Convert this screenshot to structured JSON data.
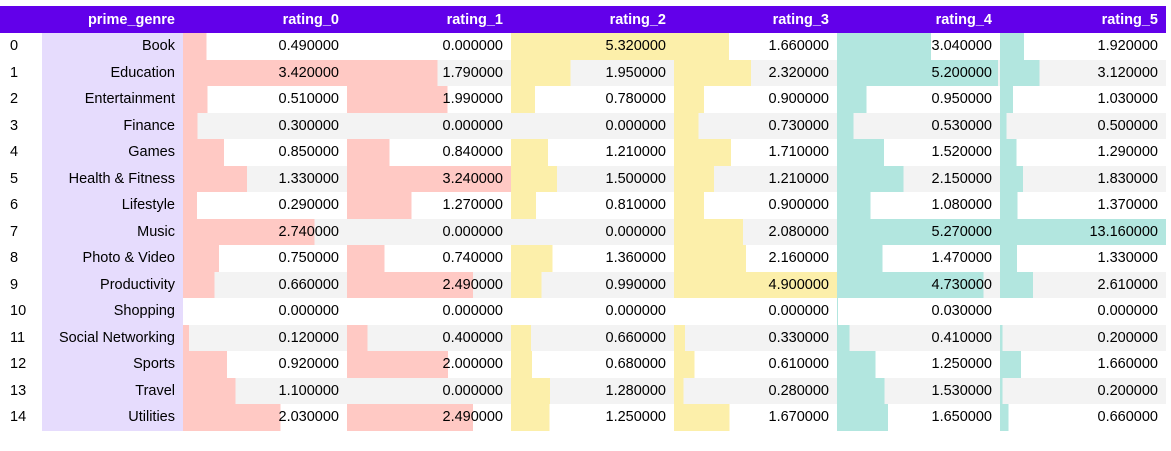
{
  "table": {
    "headers": [
      "",
      "prime_genre",
      "rating_0",
      "rating_1",
      "rating_2",
      "rating_3",
      "rating_4",
      "rating_5"
    ],
    "bar_colors": [
      "#ffc9c4",
      "#ffc9c4",
      "#fcefaa",
      "#fcefaa",
      "#b2e6df",
      "#b2e6df"
    ],
    "column_max": [
      3.42,
      3.24,
      5.32,
      4.9,
      5.27,
      13.16
    ],
    "column_maxes_note_absent": null,
    "rows": [
      {
        "idx": "0",
        "genre": "Book",
        "vals": [
          "0.490000",
          "0.000000",
          "5.320000",
          "1.660000",
          "3.040000",
          "1.920000"
        ]
      },
      {
        "idx": "1",
        "genre": "Education",
        "vals": [
          "3.420000",
          "1.790000",
          "1.950000",
          "2.320000",
          "5.200000",
          "3.120000"
        ]
      },
      {
        "idx": "2",
        "genre": "Entertainment",
        "vals": [
          "0.510000",
          "1.990000",
          "0.780000",
          "0.900000",
          "0.950000",
          "1.030000"
        ]
      },
      {
        "idx": "3",
        "genre": "Finance",
        "vals": [
          "0.300000",
          "0.000000",
          "0.000000",
          "0.730000",
          "0.530000",
          "0.500000"
        ]
      },
      {
        "idx": "4",
        "genre": "Games",
        "vals": [
          "0.850000",
          "0.840000",
          "1.210000",
          "1.710000",
          "1.520000",
          "1.290000"
        ]
      },
      {
        "idx": "5",
        "genre": "Health & Fitness",
        "vals": [
          "1.330000",
          "3.240000",
          "1.500000",
          "1.210000",
          "2.150000",
          "1.830000"
        ]
      },
      {
        "idx": "6",
        "genre": "Lifestyle",
        "vals": [
          "0.290000",
          "1.270000",
          "0.810000",
          "0.900000",
          "1.080000",
          "1.370000"
        ]
      },
      {
        "idx": "7",
        "genre": "Music",
        "vals": [
          "2.740000",
          "0.000000",
          "0.000000",
          "2.080000",
          "5.270000",
          "13.160000"
        ]
      },
      {
        "idx": "8",
        "genre": "Photo & Video",
        "vals": [
          "0.750000",
          "0.740000",
          "1.360000",
          "2.160000",
          "1.470000",
          "1.330000"
        ]
      },
      {
        "idx": "9",
        "genre": "Productivity",
        "vals": [
          "0.660000",
          "2.490000",
          "0.990000",
          "4.900000",
          "4.730000",
          "2.610000"
        ]
      },
      {
        "idx": "10",
        "genre": "Shopping",
        "vals": [
          "0.000000",
          "0.000000",
          "0.000000",
          "0.000000",
          "0.030000",
          "0.000000"
        ]
      },
      {
        "idx": "11",
        "genre": "Social Networking",
        "vals": [
          "0.120000",
          "0.400000",
          "0.660000",
          "0.330000",
          "0.410000",
          "0.200000"
        ]
      },
      {
        "idx": "12",
        "genre": "Sports",
        "vals": [
          "0.920000",
          "2.000000",
          "0.680000",
          "0.610000",
          "1.250000",
          "1.660000"
        ]
      },
      {
        "idx": "13",
        "genre": "Travel",
        "vals": [
          "1.100000",
          "0.000000",
          "1.280000",
          "0.280000",
          "1.530000",
          "0.200000"
        ]
      },
      {
        "idx": "14",
        "genre": "Utilities",
        "vals": [
          "2.030000",
          "2.490000",
          "1.250000",
          "1.670000",
          "1.650000",
          "0.660000"
        ]
      }
    ]
  }
}
